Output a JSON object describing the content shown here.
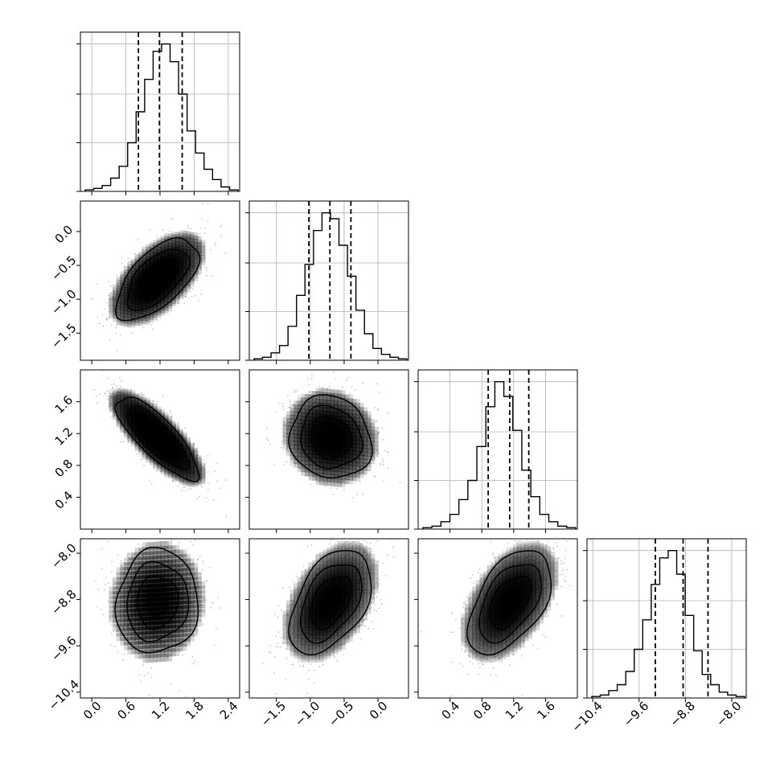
{
  "chart_data": {
    "type": "corner",
    "description": "Corner plot of a 4-parameter posterior: 1D histograms on the diagonal with dashed quantile lines, 2D density contours with scattered samples below the diagonal.",
    "grid": true,
    "parameters": [
      {
        "range": [
          -0.2,
          2.6
        ],
        "ticks": [
          "0.0",
          "0.6",
          "1.2",
          "1.8",
          "2.4"
        ],
        "tick_values": [
          0.0,
          0.6,
          1.2,
          1.8,
          2.4
        ]
      },
      {
        "range": [
          -1.9,
          0.45
        ],
        "ticks": [
          "-1.5",
          "-1.0",
          "-0.5",
          "0.0"
        ],
        "tick_values": [
          -1.5,
          -1.0,
          -0.5,
          0.0
        ]
      },
      {
        "range": [
          0.0,
          2.0
        ],
        "ticks": [
          "0.4",
          "0.8",
          "1.2",
          "1.6"
        ],
        "tick_values": [
          0.4,
          0.8,
          1.2,
          1.6
        ]
      },
      {
        "range": [
          -10.5,
          -7.75
        ],
        "ticks": [
          "-10.4",
          "-9.6",
          "-8.8",
          "-8.0"
        ],
        "tick_values": [
          -10.4,
          -9.6,
          -8.8,
          -8.0
        ]
      }
    ],
    "quantiles": [
      [
        0.82,
        1.19,
        1.59
      ],
      [
        -1.02,
        -0.71,
        -0.4
      ],
      [
        0.88,
        1.15,
        1.39
      ],
      [
        -9.32,
        -8.84,
        -8.41
      ]
    ],
    "histograms": [
      [
        0.01,
        0.02,
        0.04,
        0.09,
        0.17,
        0.33,
        0.54,
        0.76,
        0.95,
        1.0,
        0.88,
        0.66,
        0.41,
        0.26,
        0.15,
        0.08,
        0.03,
        0.01
      ],
      [
        0.01,
        0.02,
        0.05,
        0.1,
        0.23,
        0.44,
        0.65,
        0.88,
        1.0,
        0.96,
        0.78,
        0.57,
        0.34,
        0.18,
        0.08,
        0.04,
        0.02,
        0.01
      ],
      [
        0.01,
        0.02,
        0.05,
        0.1,
        0.2,
        0.33,
        0.56,
        0.83,
        1.0,
        0.9,
        0.67,
        0.4,
        0.22,
        0.1,
        0.05,
        0.02,
        0.01
      ],
      [
        0.01,
        0.02,
        0.05,
        0.09,
        0.18,
        0.33,
        0.53,
        0.77,
        0.95,
        1.0,
        0.84,
        0.56,
        0.32,
        0.16,
        0.09,
        0.04,
        0.02,
        0.01
      ]
    ],
    "pairs": [
      {
        "x": 0,
        "y": 1,
        "mean": [
          1.15,
          -0.7
        ],
        "sd": [
          0.36,
          0.3
        ],
        "rho": 0.6
      },
      {
        "x": 0,
        "y": 2,
        "mean": [
          1.15,
          1.15
        ],
        "sd": [
          0.36,
          0.26
        ],
        "rho": -0.8
      },
      {
        "x": 1,
        "y": 2,
        "mean": [
          -0.7,
          1.15
        ],
        "sd": [
          0.3,
          0.26
        ],
        "rho": -0.1
      },
      {
        "x": 0,
        "y": 3,
        "mean": [
          1.15,
          -8.84
        ],
        "sd": [
          0.36,
          0.45
        ],
        "rho": 0.05
      },
      {
        "x": 1,
        "y": 3,
        "mean": [
          -0.7,
          -8.84
        ],
        "sd": [
          0.3,
          0.45
        ],
        "rho": 0.45
      },
      {
        "x": 2,
        "y": 3,
        "mean": [
          1.15,
          -8.84
        ],
        "sd": [
          0.26,
          0.45
        ],
        "rho": 0.5
      }
    ],
    "contour_sigma_levels": [
      0.5,
      1.0,
      1.5,
      2.0
    ],
    "colors": {
      "line": "#000000",
      "grid": "#b0b0b0",
      "points": "#a0a0a0",
      "density": "#000000"
    }
  }
}
